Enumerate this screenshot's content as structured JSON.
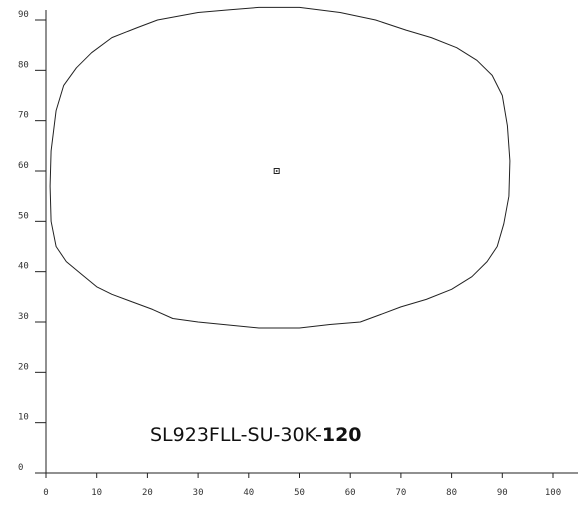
{
  "chart_data": {
    "type": "line",
    "title": "SL923FLL-SU-30K-120",
    "title_parts": {
      "prefix": "SL923FLL-SU-30K-",
      "bold": "120"
    },
    "xlabel": "",
    "ylabel": "",
    "xlim": [
      0,
      100
    ],
    "ylim": [
      0,
      90
    ],
    "x_ticks": [
      "0",
      "10",
      "20",
      "30",
      "40",
      "50",
      "60",
      "70",
      "80",
      "90",
      "100"
    ],
    "y_ticks": [
      "0",
      "10",
      "20",
      "30",
      "40",
      "50",
      "60",
      "70",
      "80",
      "90"
    ],
    "grid": false,
    "legend": "none",
    "center_marker": {
      "x": 45.5,
      "y": 60
    },
    "series": [
      {
        "points": [
          [
            42,
            92.5
          ],
          [
            50,
            92.5
          ],
          [
            58,
            91.5
          ],
          [
            65,
            90
          ],
          [
            71,
            88
          ],
          [
            76,
            86.5
          ],
          [
            81,
            84.5
          ],
          [
            85,
            82
          ],
          [
            88,
            79
          ],
          [
            90,
            75
          ],
          [
            91,
            69
          ],
          [
            91.5,
            62
          ],
          [
            91.3,
            55
          ],
          [
            90.3,
            49.5
          ],
          [
            89,
            45
          ],
          [
            87,
            42
          ],
          [
            84,
            39
          ],
          [
            80,
            36.5
          ],
          [
            75,
            34.5
          ],
          [
            70,
            33
          ],
          [
            66,
            31.5
          ],
          [
            62,
            30
          ],
          [
            56,
            29.5
          ],
          [
            50,
            28.8
          ],
          [
            42,
            28.8
          ],
          [
            35,
            29.5
          ],
          [
            30,
            30
          ],
          [
            25,
            30.7
          ],
          [
            21,
            32.5
          ],
          [
            17,
            34
          ],
          [
            13,
            35.5
          ],
          [
            10,
            37
          ],
          [
            7,
            39.5
          ],
          [
            4,
            42
          ],
          [
            2,
            45
          ],
          [
            1,
            50
          ],
          [
            0.8,
            57
          ],
          [
            1,
            64
          ],
          [
            2,
            72
          ],
          [
            3.5,
            77
          ],
          [
            6,
            80.5
          ],
          [
            9,
            83.5
          ],
          [
            13,
            86.5
          ],
          [
            18,
            88.5
          ],
          [
            22,
            90
          ],
          [
            30,
            91.5
          ],
          [
            36,
            92
          ]
        ],
        "closed": true,
        "color": "#222222"
      }
    ],
    "colors": {
      "axis": "#222222",
      "curve": "#222222",
      "text": "#333333"
    }
  }
}
